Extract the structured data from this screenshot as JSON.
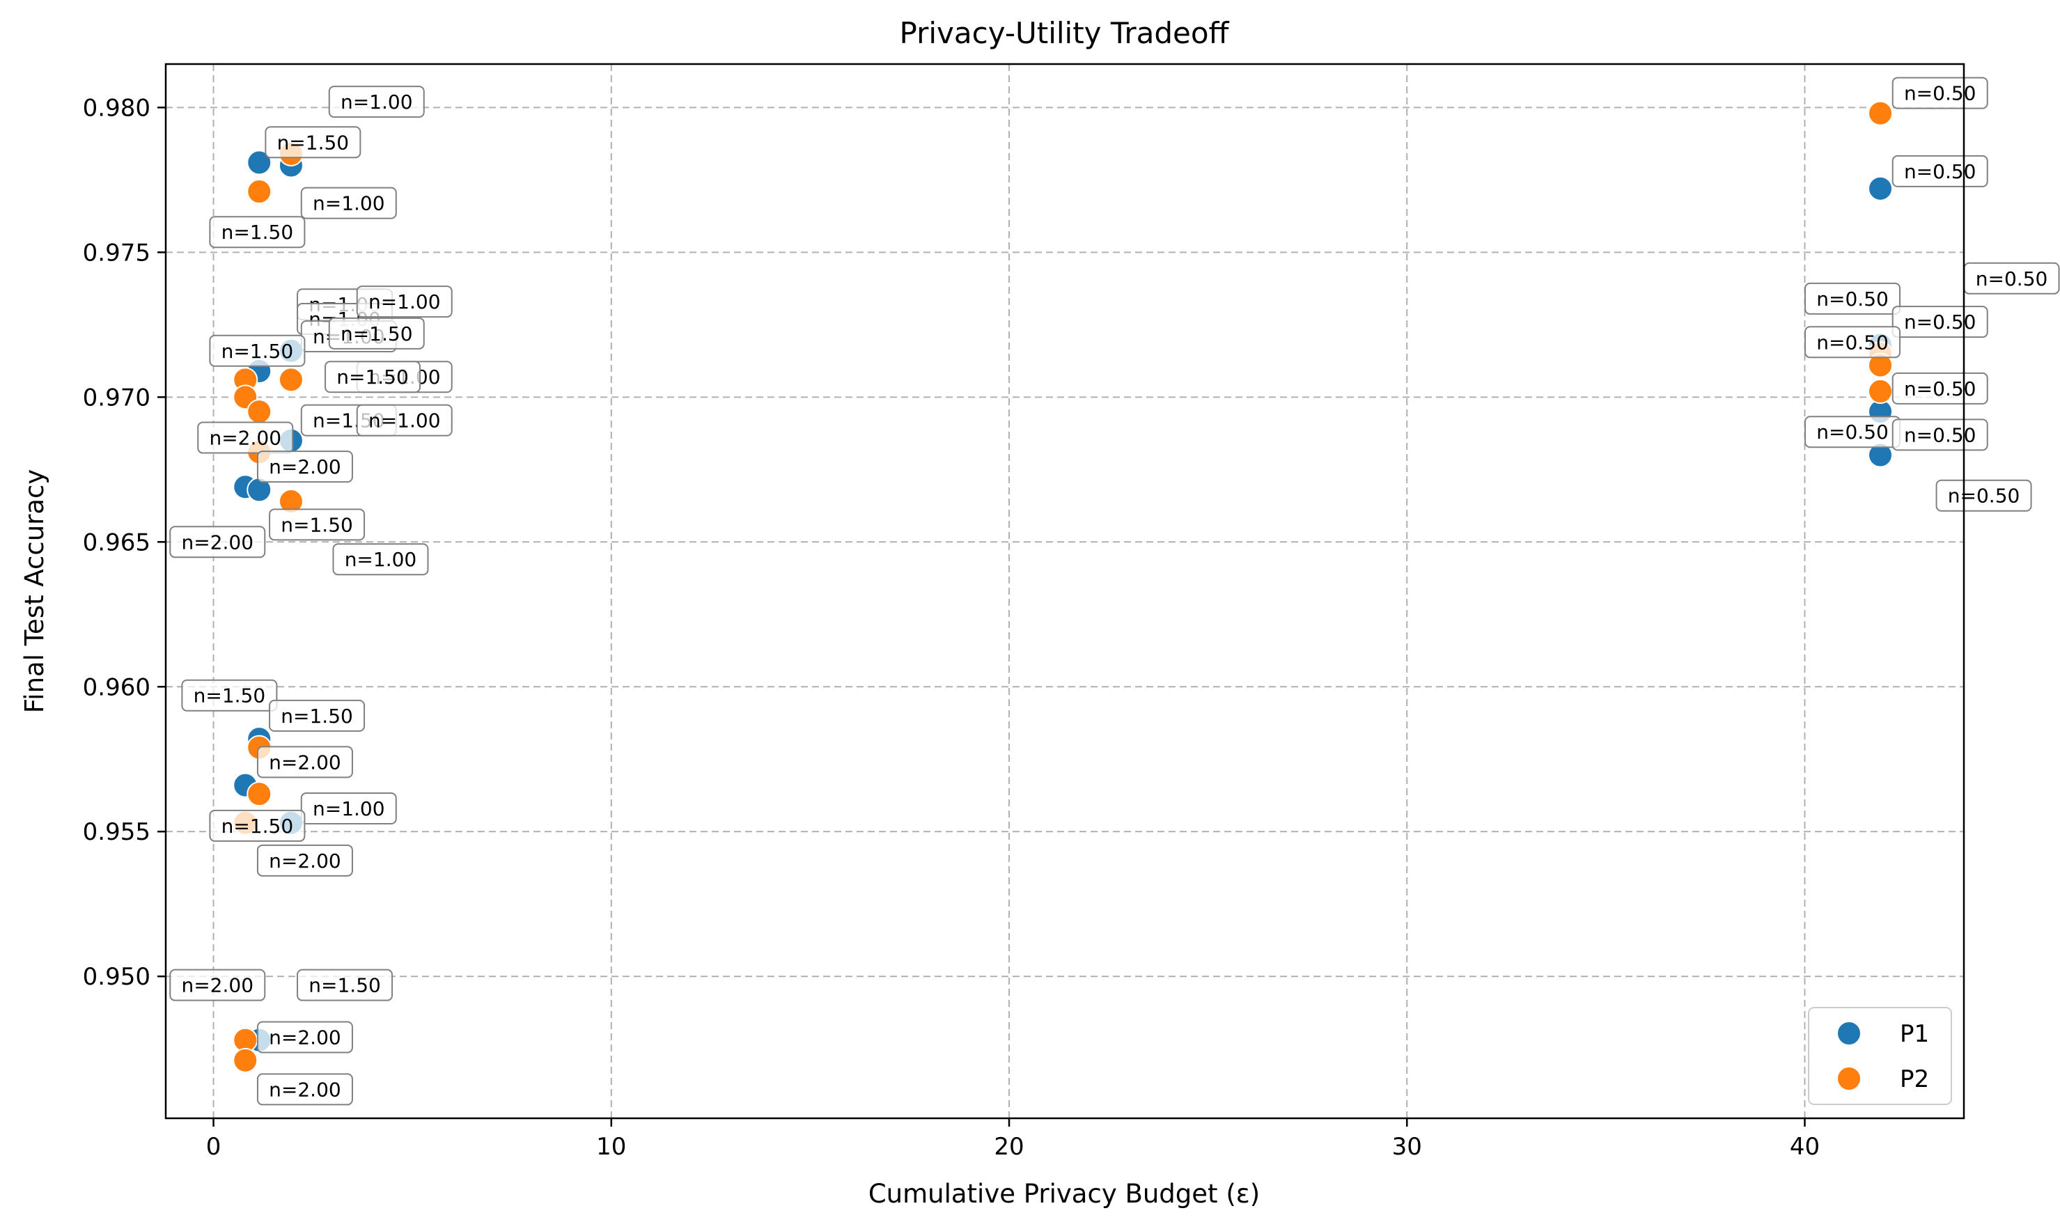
{
  "chart_data": {
    "type": "scatter",
    "title": "Privacy-Utility Tradeoff",
    "xlabel": "Cumulative Privacy Budget (ε)",
    "ylabel": "Final Test Accuracy",
    "xlim": [
      -1.2,
      44.0
    ],
    "ylim": [
      0.9451,
      0.9815
    ],
    "xticks": [
      0,
      10,
      20,
      30,
      40
    ],
    "yticks": [
      0.95,
      0.955,
      0.96,
      0.965,
      0.97,
      0.975,
      0.98
    ],
    "grid": true,
    "legend_position": "lower-right",
    "colors": {
      "P1": "#1f77b4",
      "P2": "#ff7f0e"
    },
    "series": [
      {
        "name": "P1",
        "points": [
          {
            "x": 1.15,
            "y": 0.9781
          },
          {
            "x": 1.95,
            "y": 0.978
          },
          {
            "x": 1.15,
            "y": 0.9709
          },
          {
            "x": 1.95,
            "y": 0.9716
          },
          {
            "x": 0.8,
            "y": 0.9669
          },
          {
            "x": 1.15,
            "y": 0.9668
          },
          {
            "x": 1.95,
            "y": 0.9685
          },
          {
            "x": 1.15,
            "y": 0.9582
          },
          {
            "x": 0.8,
            "y": 0.9566
          },
          {
            "x": 1.95,
            "y": 0.9553
          },
          {
            "x": 1.15,
            "y": 0.9478
          },
          {
            "x": 41.9,
            "y": 0.9772
          },
          {
            "x": 41.9,
            "y": 0.9695
          },
          {
            "x": 41.9,
            "y": 0.968
          },
          {
            "x": 41.9,
            "y": 0.9718
          }
        ]
      },
      {
        "name": "P2",
        "points": [
          {
            "x": 1.95,
            "y": 0.9784
          },
          {
            "x": 1.15,
            "y": 0.9771
          },
          {
            "x": 0.8,
            "y": 0.9706
          },
          {
            "x": 0.8,
            "y": 0.97
          },
          {
            "x": 1.15,
            "y": 0.9695
          },
          {
            "x": 1.95,
            "y": 0.9706
          },
          {
            "x": 1.15,
            "y": 0.9681
          },
          {
            "x": 1.95,
            "y": 0.9664
          },
          {
            "x": 1.15,
            "y": 0.9579
          },
          {
            "x": 1.15,
            "y": 0.9563
          },
          {
            "x": 0.8,
            "y": 0.9553
          },
          {
            "x": 0.8,
            "y": 0.9478
          },
          {
            "x": 0.8,
            "y": 0.9471
          },
          {
            "x": 41.9,
            "y": 0.9798
          },
          {
            "x": 41.9,
            "y": 0.9715
          },
          {
            "x": 41.9,
            "y": 0.9711
          },
          {
            "x": 41.9,
            "y": 0.9702
          }
        ]
      }
    ],
    "annotations": [
      {
        "text": "n=1.00",
        "x": 4.1,
        "y": 0.9802
      },
      {
        "text": "n=1.50",
        "x": 2.5,
        "y": 0.9788
      },
      {
        "text": "n=1.00",
        "x": 3.4,
        "y": 0.9767
      },
      {
        "text": "n=1.50",
        "x": 1.1,
        "y": 0.9757
      },
      {
        "text": "n=1.00",
        "x": 3.3,
        "y": 0.9732
      },
      {
        "text": "n=1.00",
        "x": 3.3,
        "y": 0.9727
      },
      {
        "text": "n=1.00",
        "x": 4.8,
        "y": 0.9733
      },
      {
        "text": "n=1.00",
        "x": 3.4,
        "y": 0.9721
      },
      {
        "text": "n=1.50",
        "x": 4.1,
        "y": 0.9722
      },
      {
        "text": "n=1.50",
        "x": 1.1,
        "y": 0.9716
      },
      {
        "text": "n=1.00",
        "x": 4.8,
        "y": 0.9707
      },
      {
        "text": "n=1.50",
        "x": 4.0,
        "y": 0.9707
      },
      {
        "text": "n=1.50",
        "x": 3.4,
        "y": 0.9692
      },
      {
        "text": "n=1.00",
        "x": 4.8,
        "y": 0.9692
      },
      {
        "text": "n=2.00",
        "x": 0.8,
        "y": 0.9686
      },
      {
        "text": "n=2.00",
        "x": 2.3,
        "y": 0.9676
      },
      {
        "text": "n=1.50",
        "x": 2.6,
        "y": 0.9656
      },
      {
        "text": "n=2.00",
        "x": 0.1,
        "y": 0.965
      },
      {
        "text": "n=1.00",
        "x": 4.2,
        "y": 0.9644
      },
      {
        "text": "n=1.50",
        "x": 0.4,
        "y": 0.9597
      },
      {
        "text": "n=1.50",
        "x": 2.6,
        "y": 0.959
      },
      {
        "text": "n=2.00",
        "x": 2.3,
        "y": 0.9574
      },
      {
        "text": "n=1.00",
        "x": 3.4,
        "y": 0.9558
      },
      {
        "text": "n=1.50",
        "x": 1.1,
        "y": 0.9552
      },
      {
        "text": "n=2.00",
        "x": 2.3,
        "y": 0.954
      },
      {
        "text": "n=2.00",
        "x": 0.1,
        "y": 0.9497
      },
      {
        "text": "n=1.50",
        "x": 3.3,
        "y": 0.9497
      },
      {
        "text": "n=2.00",
        "x": 2.3,
        "y": 0.9479
      },
      {
        "text": "n=2.00",
        "x": 2.3,
        "y": 0.9461
      },
      {
        "text": "n=0.50",
        "x": 43.4,
        "y": 0.9805
      },
      {
        "text": "n=0.50",
        "x": 43.4,
        "y": 0.9778
      },
      {
        "text": "n=0.50",
        "x": 45.2,
        "y": 0.9741
      },
      {
        "text": "n=0.50",
        "x": 41.2,
        "y": 0.9734
      },
      {
        "text": "n=0.50",
        "x": 43.4,
        "y": 0.9726
      },
      {
        "text": "n=0.50",
        "x": 41.2,
        "y": 0.9719
      },
      {
        "text": "n=0.50",
        "x": 43.4,
        "y": 0.9703
      },
      {
        "text": "n=0.50",
        "x": 41.2,
        "y": 0.9688
      },
      {
        "text": "n=0.50",
        "x": 43.4,
        "y": 0.9687
      },
      {
        "text": "n=0.50",
        "x": 44.5,
        "y": 0.9666
      }
    ]
  }
}
